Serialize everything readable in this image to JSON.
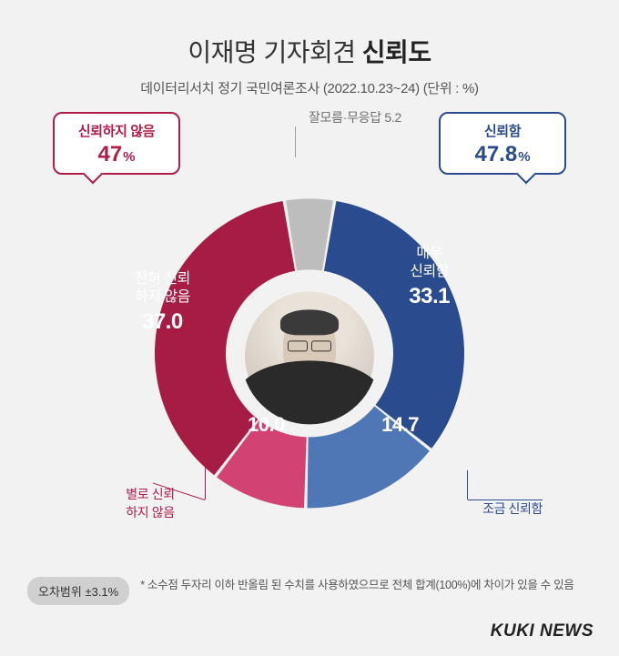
{
  "header": {
    "title_plain": "이재명 기자회견 ",
    "title_bold": "신뢰도",
    "subtitle": "데이터리서치 정기 국민여론조사 (2022.10.23~24)  (단위 : %)"
  },
  "chart": {
    "type": "donut",
    "background_color": "#f2f2f2",
    "ring_outer_r": 170,
    "ring_inner_r": 92,
    "center_image_desc": "portrait-photo",
    "neutral": {
      "label": "잘모름·무응답 5.2",
      "value": 5.2,
      "color": "#bdbdbd"
    },
    "groups": {
      "trust": {
        "bubble_label": "신뢰함",
        "total": 47.8,
        "color": "#2a4b8d",
        "slices": [
          {
            "key": "very_trust",
            "label": "매우\n신뢰함",
            "value": 33.1,
            "color": "#2a4b8d"
          },
          {
            "key": "some_trust",
            "label": "조금 신뢰함",
            "value": 14.7,
            "color": "#4f77b5"
          }
        ]
      },
      "distrust": {
        "bubble_label": "신뢰하지 않음",
        "total": 47.0,
        "color": "#b01d49",
        "slices": [
          {
            "key": "little_distrust",
            "label": "별로 신뢰\n하지 않음",
            "value": 10.0,
            "color": "#d24373"
          },
          {
            "key": "no_trust",
            "label": "전혀 신뢰\n하지 않음",
            "value": 37.0,
            "color": "#a61c45"
          }
        ]
      }
    },
    "start_angle_deg": -90,
    "gap_deg": 1.2,
    "label_fontsize": 16,
    "value_fontsize": 24,
    "bubble_border_radius": 10
  },
  "footer": {
    "badge": "오차범위 ±3.1%",
    "note": "* 소수점 두자리 이하 반올림 된 수치를 사용하였으므로 전체 합계(100%)에 차이가 있을 수 있음"
  },
  "brand": "KUKI NEWS"
}
